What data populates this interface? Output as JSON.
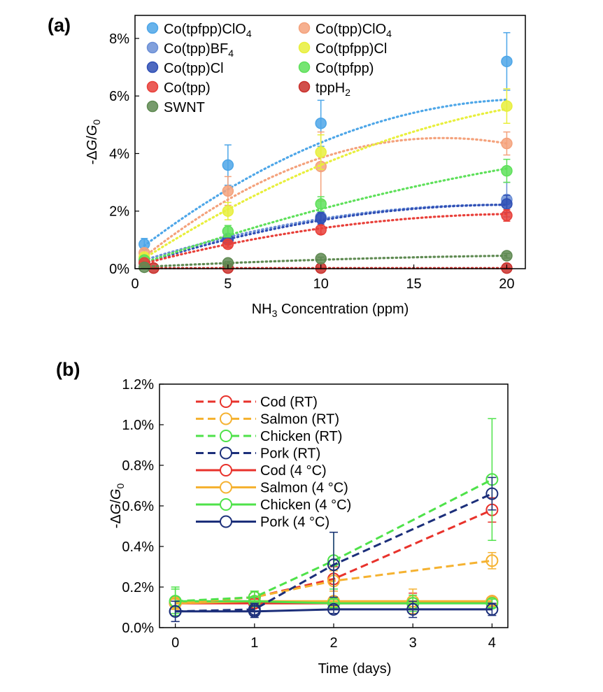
{
  "chart_data": [
    {
      "type": "scatter",
      "panel_label": "(a)",
      "xlabel": "NH3 Concentration (ppm)",
      "xlabel_parts": [
        "NH",
        "3",
        " Concentration (ppm)"
      ],
      "ylabel": "-ΔG/G0",
      "ylabel_parts": [
        "-Δ",
        "G",
        "/",
        "G",
        "0"
      ],
      "xlim": [
        0,
        21
      ],
      "ylim": [
        0,
        8.8
      ],
      "xticks": [
        0,
        5,
        10,
        15,
        20
      ],
      "yticks": [
        0,
        2,
        4,
        6,
        8
      ],
      "ytick_labels": [
        "0%",
        "2%",
        "4%",
        "6%",
        "8%"
      ],
      "grid": false,
      "legend_position": "top-left",
      "fit_style": "dotted quadratic fit",
      "x": [
        0.5,
        1,
        5,
        10,
        20
      ],
      "series": [
        {
          "name": "Co(tpfpp)ClO4",
          "name_parts": [
            "Co(tpfpp)ClO",
            "4"
          ],
          "color": "#4da6e8",
          "x": [
            0.5,
            5,
            10,
            20
          ],
          "values": [
            0.85,
            3.6,
            5.05,
            7.2
          ],
          "errors": [
            0.2,
            0.7,
            0.8,
            1.0
          ],
          "fit": [
            0.55,
            0.5,
            -0.0117
          ]
        },
        {
          "name": "Co(tpp)ClO4",
          "name_parts": [
            "Co(tpp)ClO",
            "4"
          ],
          "color": "#f4a27c",
          "x": [
            0.5,
            5,
            10,
            20
          ],
          "values": [
            0.55,
            2.7,
            3.55,
            4.35
          ],
          "errors": [
            0.15,
            0.5,
            1.2,
            0.4
          ],
          "fit": [
            0.15,
            0.53,
            -0.016
          ]
        },
        {
          "name": "Co(tpp)BF4",
          "name_parts": [
            "Co(tpp)BF",
            "4"
          ],
          "color": "#6b8fd6",
          "x": [
            0.5,
            5,
            10,
            20
          ],
          "values": [
            0.3,
            1.05,
            1.8,
            2.4
          ],
          "errors": [
            0.1,
            0.15,
            0.2,
            0.6
          ],
          "fit": [
            0.2,
            0.205,
            -0.0052
          ]
        },
        {
          "name": "Co(tpfpp)Cl",
          "name_parts": [
            "Co(tpfpp)Cl"
          ],
          "color": "#e8ef3c",
          "x": [
            0.5,
            5,
            10,
            20
          ],
          "values": [
            0.4,
            2.0,
            4.05,
            5.65
          ],
          "errors": [
            0.1,
            0.3,
            0.6,
            0.6
          ],
          "fit": [
            0.15,
            0.42,
            -0.0075
          ]
        },
        {
          "name": "Co(tpp)Cl",
          "name_parts": [
            "Co(tpp)Cl"
          ],
          "color": "#2f4fb5",
          "x": [
            0.5,
            5,
            10,
            20
          ],
          "values": [
            0.2,
            1.0,
            1.75,
            2.25
          ],
          "errors": [
            0.05,
            0.15,
            0.2,
            0.3
          ],
          "fit": [
            0.1,
            0.21,
            -0.0052
          ]
        },
        {
          "name": "Co(tpfpp)",
          "name_parts": [
            "Co(tpfpp)"
          ],
          "color": "#5ee05a",
          "x": [
            0.5,
            5,
            10,
            20
          ],
          "values": [
            0.3,
            1.3,
            2.25,
            3.4
          ],
          "errors": [
            0.1,
            0.2,
            0.25,
            0.4
          ],
          "fit": [
            0.1,
            0.225,
            -0.0028
          ]
        },
        {
          "name": "Co(tpp)",
          "name_parts": [
            "Co(tpp)"
          ],
          "color": "#e8403a",
          "x": [
            0.5,
            5,
            10,
            20
          ],
          "values": [
            0.2,
            0.85,
            1.35,
            1.85
          ],
          "errors": [
            0.05,
            0.1,
            0.15,
            0.2
          ],
          "fit": [
            0.1,
            0.17,
            -0.004
          ]
        },
        {
          "name": "tppH2",
          "name_parts": [
            "tppH",
            "2"
          ],
          "color": "#c9302c",
          "x": [
            1,
            5,
            10,
            20
          ],
          "values": [
            0.02,
            0.02,
            0.02,
            0.02
          ],
          "errors": [
            0.01,
            0.01,
            0.01,
            0.01
          ],
          "fit": [
            0.02,
            0,
            0
          ]
        },
        {
          "name": "SWNT",
          "name_parts": [
            "SWNT"
          ],
          "color": "#5f8a52",
          "x": [
            0.5,
            5,
            10,
            20
          ],
          "values": [
            0.05,
            0.2,
            0.35,
            0.45
          ],
          "errors": [
            0.03,
            0.05,
            0.05,
            0.08
          ],
          "fit": [
            0.05,
            0.032,
            -0.0006
          ]
        }
      ]
    },
    {
      "type": "line",
      "panel_label": "(b)",
      "xlabel": "Time (days)",
      "ylabel": "-ΔG/G0",
      "ylabel_parts": [
        "-Δ",
        "G",
        "/",
        "G",
        "0"
      ],
      "x": [
        0,
        1,
        2,
        3,
        4
      ],
      "xlim": [
        -0.2,
        4.2
      ],
      "ylim": [
        0,
        1.2
      ],
      "xticks": [
        0,
        1,
        2,
        3,
        4
      ],
      "yticks": [
        0,
        0.2,
        0.4,
        0.6,
        0.8,
        1.0,
        1.2
      ],
      "ytick_labels": [
        "0.0%",
        "0.2%",
        "0.4%",
        "0.6%",
        "0.8%",
        "1.0%",
        "1.2%"
      ],
      "grid": false,
      "legend_position": "top-left",
      "series": [
        {
          "name": "Cod (RT)",
          "color": "#e8322b",
          "style": "dashed",
          "values": [
            0.12,
            0.15,
            0.24,
            null,
            0.58
          ],
          "errors": [
            0.03,
            0.03,
            0.06,
            null,
            0.06
          ]
        },
        {
          "name": "Salmon (RT)",
          "color": "#f5b231",
          "style": "dashed",
          "values": [
            0.12,
            0.15,
            0.23,
            null,
            0.33
          ],
          "errors": [
            0.03,
            0.03,
            0.05,
            null,
            0.04
          ]
        },
        {
          "name": "Chicken (RT)",
          "color": "#4fe24a",
          "style": "dashed",
          "values": [
            0.13,
            0.15,
            0.33,
            null,
            0.73
          ],
          "errors": [
            0.07,
            0.03,
            0.14,
            null,
            0.3
          ]
        },
        {
          "name": "Pork (RT)",
          "color": "#1c2f7a",
          "style": "dashed",
          "values": [
            0.08,
            0.09,
            0.31,
            null,
            0.66
          ],
          "errors": [
            0.05,
            0.03,
            0.16,
            null,
            0.08
          ]
        },
        {
          "name": "Cod (4 °C)",
          "color": "#e8322b",
          "style": "solid",
          "values": [
            0.12,
            0.12,
            0.12,
            0.12,
            0.13
          ],
          "errors": [
            0.02,
            0.02,
            0.02,
            0.05,
            0.02
          ]
        },
        {
          "name": "Salmon (4 °C)",
          "color": "#f5b231",
          "style": "solid",
          "values": [
            0.12,
            0.13,
            0.13,
            0.13,
            0.13
          ],
          "errors": [
            0.02,
            0.02,
            0.02,
            0.06,
            0.02
          ]
        },
        {
          "name": "Chicken (4 °C)",
          "color": "#4fe24a",
          "style": "solid",
          "values": [
            0.13,
            0.13,
            0.12,
            0.12,
            0.12
          ],
          "errors": [
            0.06,
            0.02,
            0.02,
            0.04,
            0.02
          ]
        },
        {
          "name": "Pork (4 °C)",
          "color": "#1c2f7a",
          "style": "solid",
          "values": [
            0.08,
            0.08,
            0.09,
            0.09,
            0.09
          ],
          "errors": [
            0.05,
            0.03,
            0.02,
            0.04,
            0.03
          ]
        }
      ]
    }
  ]
}
